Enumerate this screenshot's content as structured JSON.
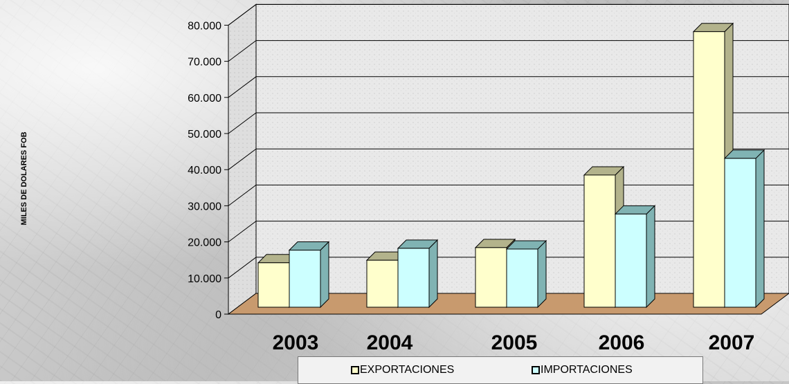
{
  "chart_data": {
    "type": "bar",
    "style": "3d-clustered",
    "categories": [
      "2003",
      "2004",
      "2005",
      "2006",
      "2007"
    ],
    "series": [
      {
        "name": "EXPORTACIONES",
        "values": [
          12300,
          13000,
          16500,
          36600,
          76300
        ]
      },
      {
        "name": "IMPORTACIONES",
        "values": [
          15800,
          16300,
          16100,
          25800,
          41200
        ]
      }
    ],
    "ylabel": "MILES DE DOLARES  FOB",
    "xlabel": "",
    "title": "",
    "ylim": [
      0,
      80000
    ],
    "yticks": [
      0,
      10000,
      20000,
      30000,
      40000,
      50000,
      60000,
      70000,
      80000
    ],
    "ytick_labels": [
      "0",
      "10.000",
      "20.000",
      "30.000",
      "40.000",
      "50.000",
      "60.000",
      "70.000",
      "80.000"
    ],
    "grid": true,
    "legend_position": "bottom",
    "colors": {
      "exportaciones": "#FFFFCC",
      "importaciones": "#CCFFFF",
      "exportaciones_side": "#B3B38C",
      "importaciones_side": "#80B3B3",
      "floor": "#C89A6E",
      "wall": "#E9E9E9"
    }
  }
}
